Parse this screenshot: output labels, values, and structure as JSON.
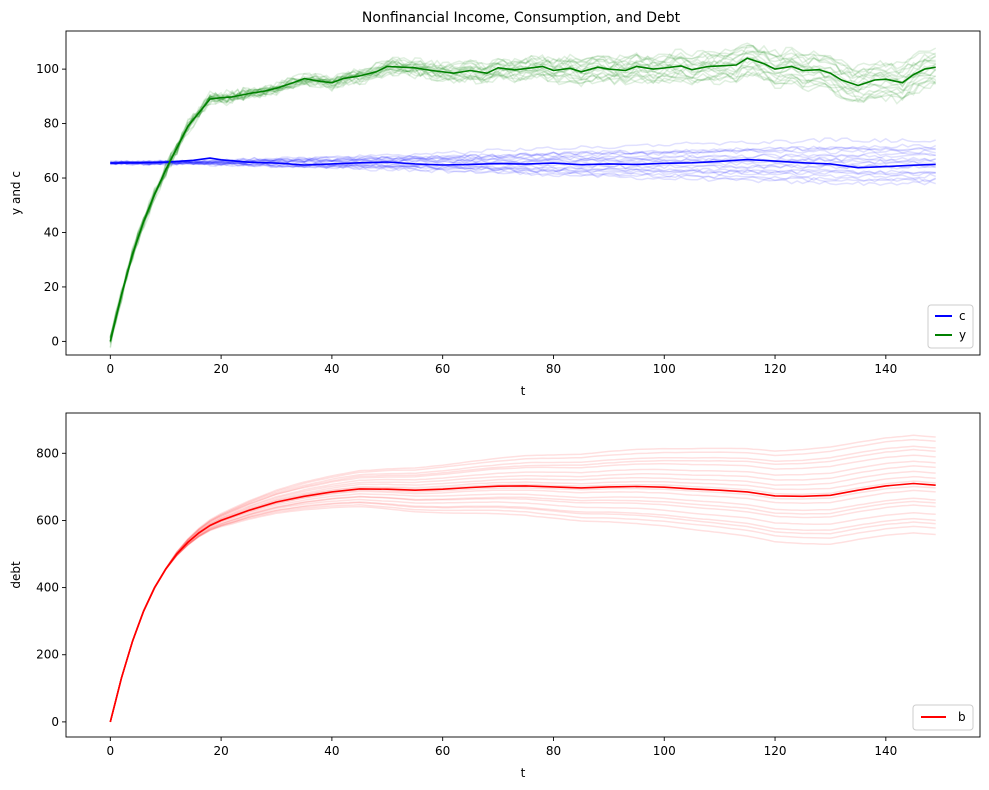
{
  "chart_data": [
    {
      "type": "line",
      "title": "Nonfinancial Income, Consumption, and Debt",
      "xlabel": "t",
      "ylabel": "y and c",
      "xlim": [
        -8,
        157
      ],
      "ylim": [
        -5,
        114
      ],
      "xticks": [
        0,
        20,
        40,
        60,
        80,
        100,
        120,
        140
      ],
      "yticks": [
        0,
        20,
        40,
        60,
        80,
        100
      ],
      "legend_position": "lower-right",
      "legend": [
        "c",
        "y"
      ],
      "colors": {
        "c": "#0000ff",
        "y": "#008000"
      },
      "series": [
        {
          "name": "c",
          "role": "highlighted",
          "x": [
            0,
            5,
            10,
            15,
            18,
            20,
            25,
            30,
            35,
            40,
            45,
            50,
            55,
            60,
            65,
            70,
            75,
            80,
            85,
            90,
            95,
            100,
            105,
            110,
            115,
            120,
            125,
            130,
            135,
            140,
            145,
            149
          ],
          "y": [
            65.5,
            65.6,
            65.8,
            66.5,
            67.3,
            66.7,
            65.8,
            65.5,
            64.8,
            65.2,
            65.6,
            65.9,
            65.2,
            64.8,
            65.0,
            65.3,
            65.1,
            65.5,
            64.9,
            65.2,
            65.0,
            65.4,
            65.6,
            66.1,
            66.8,
            66.2,
            65.6,
            65.2,
            63.8,
            64.2,
            64.7,
            65.0
          ]
        },
        {
          "name": "y",
          "role": "highlighted",
          "x": [
            0,
            2,
            4,
            6,
            8,
            10,
            12,
            14,
            16,
            18,
            20,
            22,
            25,
            28,
            30,
            33,
            35,
            38,
            40,
            42,
            45,
            48,
            50,
            55,
            58,
            60,
            62,
            65,
            68,
            70,
            73,
            75,
            78,
            80,
            83,
            85,
            88,
            90,
            93,
            95,
            98,
            100,
            103,
            105,
            108,
            110,
            113,
            115,
            118,
            120,
            123,
            125,
            128,
            130,
            132,
            135,
            138,
            140,
            143,
            145,
            147,
            149
          ],
          "y": [
            0,
            17,
            32,
            44,
            54,
            63,
            71,
            79,
            84,
            89,
            89.5,
            89.8,
            91,
            92,
            93,
            95,
            96.5,
            95.5,
            95,
            96.5,
            97.5,
            99,
            101,
            100.5,
            99.5,
            99,
            98.5,
            99.5,
            98.5,
            100.5,
            99.7,
            100.2,
            101,
            99.5,
            100.3,
            99,
            100.7,
            100,
            99.5,
            101,
            100,
            100.4,
            101.2,
            99.8,
            101,
            101.2,
            101.5,
            104,
            102,
            100,
            101,
            99.5,
            99.8,
            98.5,
            96,
            94,
            96,
            96.3,
            95,
            98,
            100,
            100.7
          ]
        }
      ],
      "simulation_paths": [
        {
          "series": "c",
          "count": 20,
          "final_min": 58,
          "final_max": 73
        },
        {
          "series": "y",
          "count": 20,
          "final_min": 94,
          "final_max": 107
        }
      ]
    },
    {
      "type": "line",
      "title": "",
      "xlabel": "t",
      "ylabel": "debt",
      "xlim": [
        -8,
        157
      ],
      "ylim": [
        -45,
        920
      ],
      "xticks": [
        0,
        20,
        40,
        60,
        80,
        100,
        120,
        140
      ],
      "yticks": [
        0,
        200,
        400,
        600,
        800
      ],
      "legend_position": "lower-right",
      "legend": [
        "b"
      ],
      "colors": {
        "b": "#ff0000"
      },
      "series": [
        {
          "name": "b",
          "role": "highlighted",
          "x": [
            0,
            2,
            4,
            6,
            8,
            10,
            12,
            14,
            16,
            18,
            20,
            25,
            30,
            35,
            40,
            45,
            50,
            55,
            60,
            65,
            70,
            75,
            80,
            85,
            90,
            95,
            100,
            105,
            110,
            115,
            120,
            125,
            130,
            135,
            140,
            145,
            149
          ],
          "y": [
            0,
            130,
            240,
            330,
            400,
            455,
            500,
            535,
            563,
            585,
            600,
            630,
            655,
            672,
            685,
            694,
            693,
            690,
            693,
            698,
            702,
            703,
            700,
            697,
            700,
            701,
            699,
            694,
            690,
            685,
            673,
            672,
            675,
            690,
            703,
            710,
            705
          ]
        }
      ],
      "simulation_paths": [
        {
          "series": "b",
          "count": 20,
          "final_min": 560,
          "final_max": 850
        }
      ]
    }
  ]
}
